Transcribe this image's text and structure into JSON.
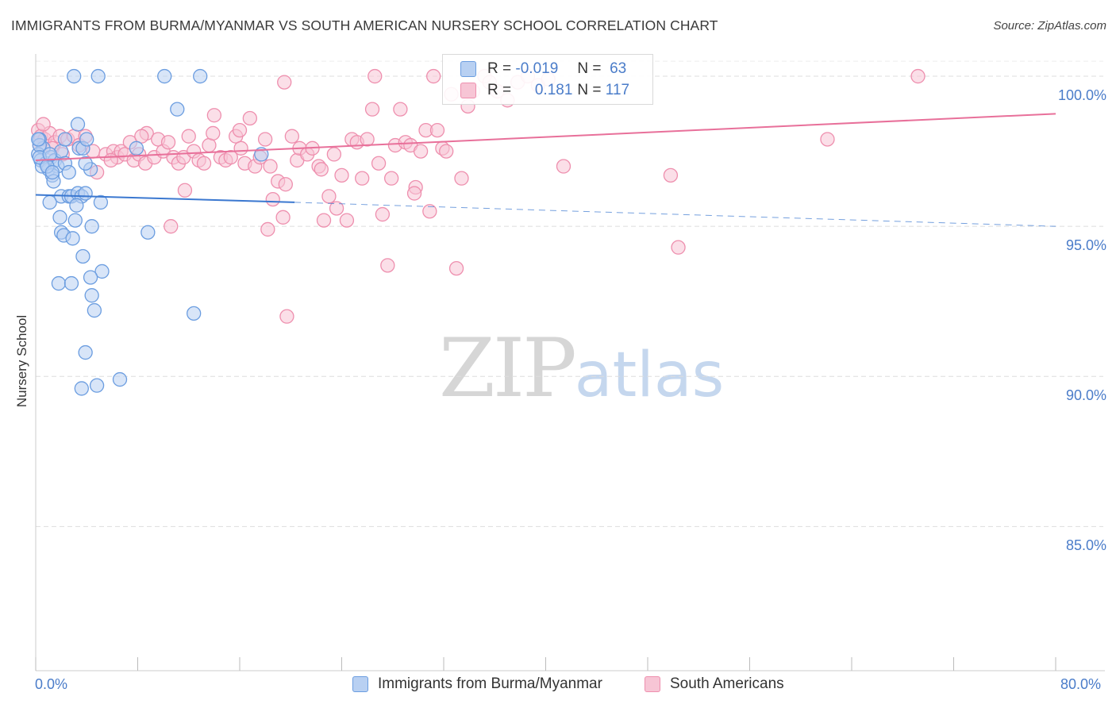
{
  "title": "IMMIGRANTS FROM BURMA/MYANMAR VS SOUTH AMERICAN NURSERY SCHOOL CORRELATION CHART",
  "source": "Source: ZipAtlas.com",
  "watermark": {
    "zip": "ZIP",
    "atlas": "atlas"
  },
  "colors": {
    "blue_fill": "#b8d0f2",
    "blue_stroke": "#6b9de0",
    "blue_line": "#3b78d0",
    "pink_fill": "#f7c5d5",
    "pink_stroke": "#ee8fae",
    "pink_line": "#e8709a",
    "tick_text": "#4a7cc9",
    "grid": "#dddddd"
  },
  "legend": {
    "rows": [
      {
        "r_label": "R =",
        "r_value": "-0.019",
        "n_label": "N =",
        "n_value": "63"
      },
      {
        "r_label": "R =",
        "r_value": "0.181",
        "n_label": "N =",
        "n_value": "117"
      }
    ]
  },
  "chart_data": {
    "type": "scatter",
    "title": "IMMIGRANTS FROM BURMA/MYANMAR VS SOUTH AMERICAN NURSERY SCHOOL CORRELATION CHART",
    "xlabel": "",
    "ylabel": "Nursery School",
    "xlim": [
      0,
      80
    ],
    "ylim": [
      80.2,
      100.9
    ],
    "x_tick_labels": [
      {
        "value": 0,
        "label": "0.0%"
      },
      {
        "value": 80,
        "label": "80.0%"
      }
    ],
    "x_minor_ticks": [
      0,
      8,
      16,
      24,
      32,
      40,
      48,
      56,
      64,
      72,
      80
    ],
    "y_ticks": [
      {
        "value": 100,
        "label": "100.0%"
      },
      {
        "value": 95,
        "label": "95.0%"
      },
      {
        "value": 90,
        "label": "90.0%"
      },
      {
        "value": 85,
        "label": "85.0%"
      }
    ],
    "grid": true,
    "series": [
      {
        "name": "Immigrants from Burma/Myanmar",
        "color_key": "blue",
        "points": [
          [
            3.0,
            100.0
          ],
          [
            4.9,
            100.0
          ],
          [
            10.1,
            100.0
          ],
          [
            12.9,
            100.0
          ],
          [
            11.1,
            98.9
          ],
          [
            3.3,
            98.4
          ],
          [
            0.3,
            97.9
          ],
          [
            0.6,
            97.6
          ],
          [
            0.2,
            97.4
          ],
          [
            0.4,
            97.2
          ],
          [
            0.8,
            97.1
          ],
          [
            1.0,
            96.9
          ],
          [
            1.2,
            97.3
          ],
          [
            1.5,
            97.2
          ],
          [
            0.5,
            97.0
          ],
          [
            1.7,
            97.0
          ],
          [
            2.0,
            97.5
          ],
          [
            2.3,
            97.1
          ],
          [
            2.6,
            96.8
          ],
          [
            1.3,
            96.7
          ],
          [
            1.4,
            96.5
          ],
          [
            0.3,
            97.7
          ],
          [
            3.4,
            97.6
          ],
          [
            4.3,
            96.9
          ],
          [
            7.9,
            97.6
          ],
          [
            3.9,
            97.1
          ],
          [
            17.7,
            97.4
          ],
          [
            2.0,
            96.0
          ],
          [
            2.6,
            96.0
          ],
          [
            2.8,
            96.0
          ],
          [
            3.3,
            96.1
          ],
          [
            3.6,
            96.0
          ],
          [
            3.9,
            96.1
          ],
          [
            1.1,
            95.8
          ],
          [
            3.2,
            95.7
          ],
          [
            5.1,
            95.8
          ],
          [
            1.9,
            95.3
          ],
          [
            3.1,
            95.2
          ],
          [
            4.4,
            95.0
          ],
          [
            2.0,
            94.8
          ],
          [
            2.2,
            94.7
          ],
          [
            2.9,
            94.6
          ],
          [
            8.8,
            94.8
          ],
          [
            3.7,
            94.0
          ],
          [
            5.2,
            93.5
          ],
          [
            4.3,
            93.3
          ],
          [
            1.8,
            93.1
          ],
          [
            2.8,
            93.1
          ],
          [
            4.4,
            92.7
          ],
          [
            4.6,
            92.2
          ],
          [
            12.4,
            92.1
          ],
          [
            3.9,
            90.8
          ],
          [
            6.6,
            89.9
          ],
          [
            4.8,
            89.7
          ],
          [
            3.6,
            89.6
          ],
          [
            0.2,
            97.9
          ],
          [
            0.3,
            97.3
          ],
          [
            0.9,
            97.0
          ],
          [
            1.1,
            97.4
          ],
          [
            1.3,
            96.8
          ],
          [
            2.3,
            97.9
          ],
          [
            3.7,
            97.6
          ],
          [
            4.0,
            97.9
          ]
        ]
      },
      {
        "name": "South Americans",
        "color_key": "pink",
        "points": [
          [
            0.2,
            98.2
          ],
          [
            0.4,
            98.0
          ],
          [
            0.7,
            97.9
          ],
          [
            1.1,
            98.1
          ],
          [
            1.5,
            97.8
          ],
          [
            1.9,
            98.0
          ],
          [
            2.5,
            97.9
          ],
          [
            3.0,
            98.0
          ],
          [
            3.4,
            97.7
          ],
          [
            3.9,
            98.0
          ],
          [
            4.5,
            97.5
          ],
          [
            4.8,
            96.8
          ],
          [
            5.5,
            97.4
          ],
          [
            6.1,
            97.5
          ],
          [
            6.4,
            97.3
          ],
          [
            6.7,
            97.5
          ],
          [
            7.0,
            97.4
          ],
          [
            7.4,
            97.8
          ],
          [
            7.7,
            97.2
          ],
          [
            8.1,
            97.4
          ],
          [
            8.7,
            98.1
          ],
          [
            8.6,
            97.1
          ],
          [
            9.3,
            97.3
          ],
          [
            9.6,
            97.9
          ],
          [
            10.0,
            97.5
          ],
          [
            10.4,
            97.8
          ],
          [
            10.8,
            97.3
          ],
          [
            11.2,
            97.1
          ],
          [
            11.6,
            97.3
          ],
          [
            12.0,
            98.0
          ],
          [
            12.4,
            97.5
          ],
          [
            12.8,
            97.2
          ],
          [
            13.2,
            97.1
          ],
          [
            13.6,
            97.7
          ],
          [
            14.0,
            98.7
          ],
          [
            14.5,
            97.3
          ],
          [
            14.9,
            97.2
          ],
          [
            15.3,
            97.3
          ],
          [
            15.7,
            98.0
          ],
          [
            16.0,
            98.2
          ],
          [
            16.4,
            97.1
          ],
          [
            16.8,
            98.6
          ],
          [
            17.2,
            97.0
          ],
          [
            17.6,
            97.3
          ],
          [
            18.0,
            97.9
          ],
          [
            18.4,
            97.0
          ],
          [
            19.0,
            96.5
          ],
          [
            19.4,
            95.3
          ],
          [
            18.6,
            95.9
          ],
          [
            18.2,
            94.9
          ],
          [
            19.7,
            92.0
          ],
          [
            19.5,
            99.8
          ],
          [
            20.1,
            98.0
          ],
          [
            20.5,
            97.2
          ],
          [
            20.7,
            97.6
          ],
          [
            21.3,
            97.4
          ],
          [
            21.7,
            97.6
          ],
          [
            22.2,
            97.0
          ],
          [
            22.6,
            95.2
          ],
          [
            23.0,
            96.0
          ],
          [
            23.4,
            97.4
          ],
          [
            23.6,
            95.6
          ],
          [
            24.0,
            96.7
          ],
          [
            24.4,
            95.2
          ],
          [
            24.8,
            97.9
          ],
          [
            25.2,
            97.8
          ],
          [
            25.6,
            96.6
          ],
          [
            26.0,
            97.9
          ],
          [
            26.4,
            98.9
          ],
          [
            26.6,
            100.0
          ],
          [
            27.2,
            95.4
          ],
          [
            27.6,
            93.7
          ],
          [
            27.9,
            96.6
          ],
          [
            28.2,
            97.7
          ],
          [
            28.6,
            98.9
          ],
          [
            29.0,
            97.8
          ],
          [
            29.4,
            97.7
          ],
          [
            29.8,
            96.3
          ],
          [
            30.2,
            97.5
          ],
          [
            30.6,
            98.2
          ],
          [
            30.9,
            95.5
          ],
          [
            31.2,
            100.0
          ],
          [
            31.5,
            98.2
          ],
          [
            31.9,
            97.6
          ],
          [
            32.2,
            97.5
          ],
          [
            32.6,
            99.4
          ],
          [
            33.0,
            93.6
          ],
          [
            33.4,
            96.6
          ],
          [
            33.9,
            99.0
          ],
          [
            34.3,
            99.5
          ],
          [
            35.2,
            100.0
          ],
          [
            35.6,
            99.8
          ],
          [
            36.2,
            99.5
          ],
          [
            37.0,
            99.2
          ],
          [
            37.8,
            99.8
          ],
          [
            38.6,
            100.0
          ],
          [
            39.4,
            99.7
          ],
          [
            40.2,
            99.9
          ],
          [
            41.4,
            97.0
          ],
          [
            49.8,
            96.7
          ],
          [
            50.4,
            94.3
          ],
          [
            62.1,
            97.9
          ],
          [
            69.2,
            100.0
          ],
          [
            0.3,
            97.7
          ],
          [
            0.6,
            98.4
          ],
          [
            1.3,
            97.6
          ],
          [
            2.1,
            97.4
          ],
          [
            5.9,
            97.2
          ],
          [
            8.3,
            98.0
          ],
          [
            11.7,
            96.2
          ],
          [
            13.9,
            98.1
          ],
          [
            16.1,
            97.6
          ],
          [
            19.6,
            96.4
          ],
          [
            22.4,
            96.9
          ],
          [
            10.6,
            95.0
          ],
          [
            26.9,
            97.1
          ],
          [
            29.7,
            96.1
          ]
        ]
      }
    ],
    "trendlines": [
      {
        "series": "Immigrants from Burma/Myanmar",
        "solid": [
          [
            0,
            96.05
          ],
          [
            20.3,
            95.8
          ]
        ],
        "dashed": [
          [
            20.3,
            95.8
          ],
          [
            80,
            95.0
          ]
        ]
      },
      {
        "series": "South Americans",
        "solid": [
          [
            0,
            97.2
          ],
          [
            80,
            98.75
          ]
        ]
      }
    ]
  }
}
